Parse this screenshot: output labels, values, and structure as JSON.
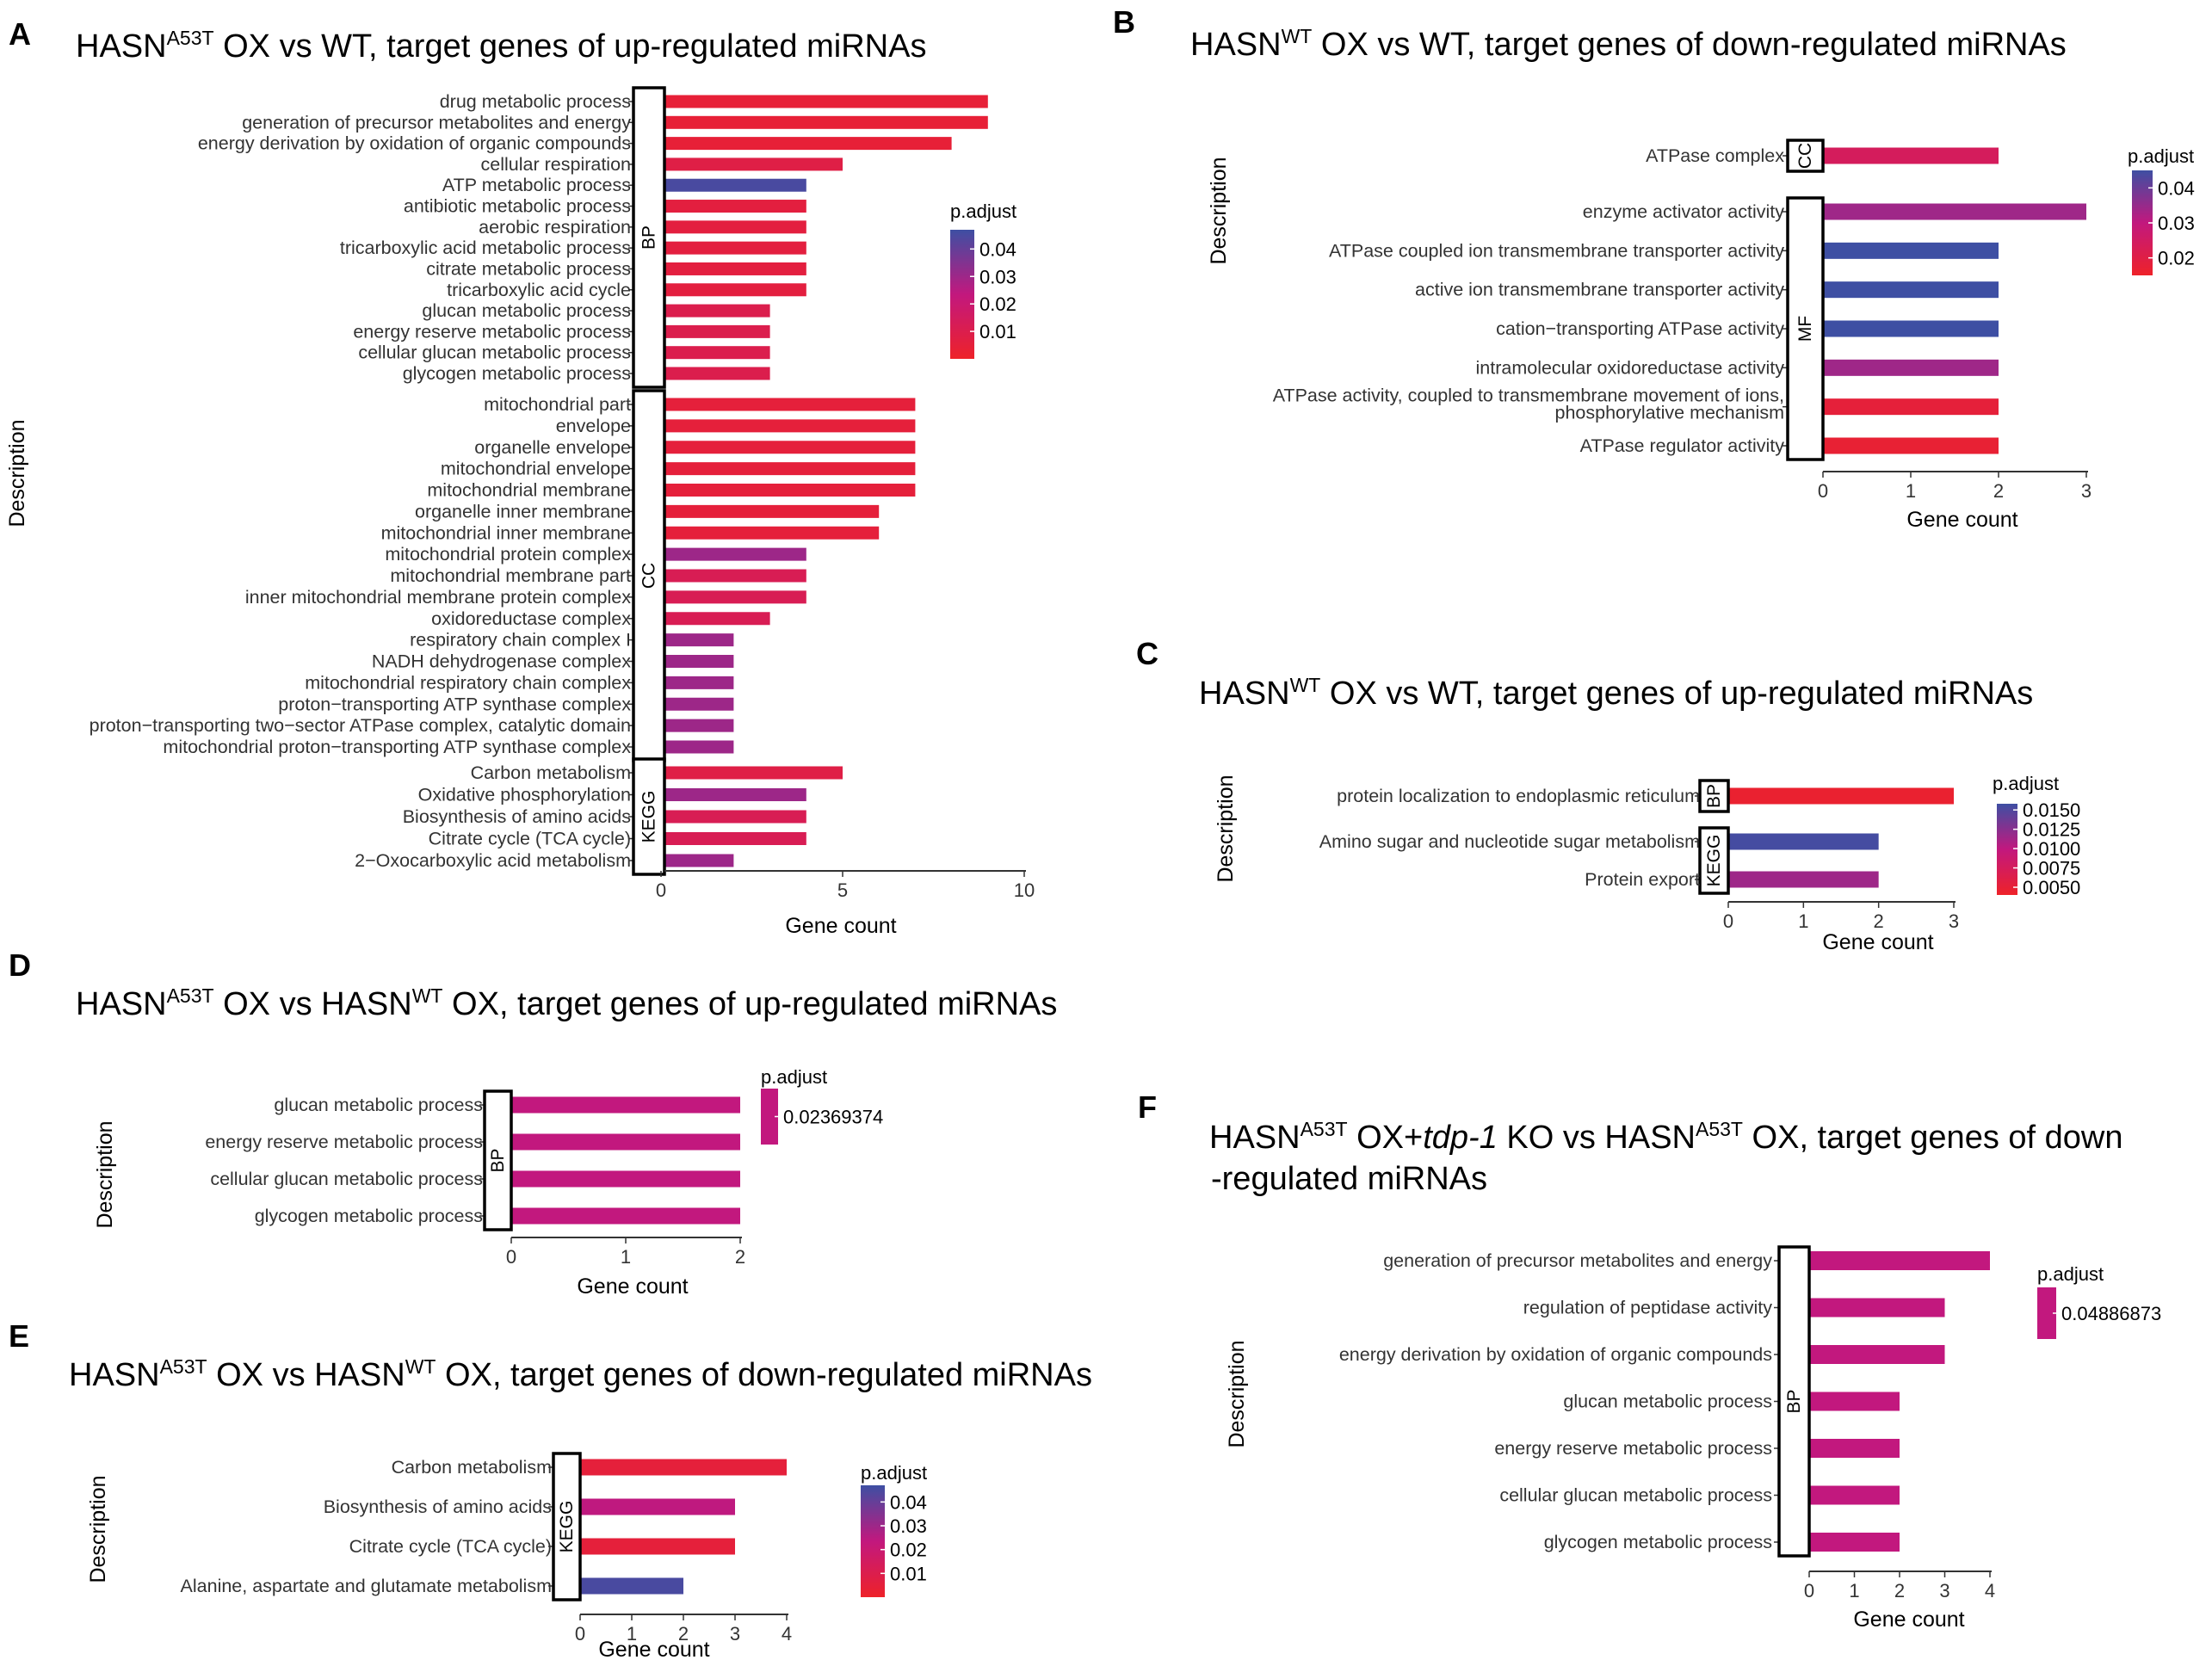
{
  "legend_title": "p.adjust",
  "x_axis_label": "Gene count",
  "y_axis_label": "Description",
  "colors": {
    "low": "#ee2229",
    "mid": "#c2187e",
    "high": "#3e4fa3"
  },
  "chart_data": [
    {
      "id": "A",
      "type": "bar",
      "orientation": "horizontal",
      "title_parts": [
        [
          "HASN",
          ""
        ],
        [
          "A53T",
          "sup"
        ],
        [
          " OX vs WT, target genes of up-regulated miRNAs",
          ""
        ]
      ],
      "xlim": [
        0,
        10
      ],
      "xticks": [
        0,
        5,
        10
      ],
      "padj_range": [
        0.0,
        0.047
      ],
      "legend_ticks": [
        "0.04",
        "0.03",
        "0.02",
        "0.01"
      ],
      "legend_values": [
        0.04,
        0.03,
        0.02,
        0.01
      ],
      "groups": [
        {
          "name": "BP",
          "items": [
            {
              "label": "drug metabolic process",
              "value": 9,
              "padj": 0.004
            },
            {
              "label": "generation of precursor metabolites and energy",
              "value": 9,
              "padj": 0.004
            },
            {
              "label": "energy derivation by oxidation of organic compounds",
              "value": 8,
              "padj": 0.004
            },
            {
              "label": "cellular respiration",
              "value": 5,
              "padj": 0.008
            },
            {
              "label": "ATP metabolic process",
              "value": 4,
              "padj": 0.045
            },
            {
              "label": "antibiotic metabolic process",
              "value": 4,
              "padj": 0.006
            },
            {
              "label": "aerobic respiration",
              "value": 4,
              "padj": 0.006
            },
            {
              "label": "tricarboxylic acid metabolic process",
              "value": 4,
              "padj": 0.006
            },
            {
              "label": "citrate metabolic process",
              "value": 4,
              "padj": 0.006
            },
            {
              "label": "tricarboxylic acid cycle",
              "value": 4,
              "padj": 0.006
            },
            {
              "label": "glucan metabolic process",
              "value": 3,
              "padj": 0.01
            },
            {
              "label": "energy reserve metabolic process",
              "value": 3,
              "padj": 0.01
            },
            {
              "label": "cellular glucan metabolic process",
              "value": 3,
              "padj": 0.01
            },
            {
              "label": "glycogen metabolic process",
              "value": 3,
              "padj": 0.01
            }
          ]
        },
        {
          "name": "CC",
          "items": [
            {
              "label": "mitochondrial part",
              "value": 7,
              "padj": 0.005
            },
            {
              "label": "envelope",
              "value": 7,
              "padj": 0.005
            },
            {
              "label": "organelle envelope",
              "value": 7,
              "padj": 0.005
            },
            {
              "label": "mitochondrial envelope",
              "value": 7,
              "padj": 0.005
            },
            {
              "label": "mitochondrial membrane",
              "value": 7,
              "padj": 0.005
            },
            {
              "label": "organelle inner membrane",
              "value": 6,
              "padj": 0.005
            },
            {
              "label": "mitochondrial inner membrane",
              "value": 6,
              "padj": 0.005
            },
            {
              "label": "mitochondrial protein complex",
              "value": 4,
              "padj": 0.03
            },
            {
              "label": "mitochondrial membrane part",
              "value": 4,
              "padj": 0.012
            },
            {
              "label": "inner mitochondrial membrane protein complex",
              "value": 4,
              "padj": 0.012
            },
            {
              "label": "oxidoreductase complex",
              "value": 3,
              "padj": 0.012
            },
            {
              "label": "respiratory chain complex I",
              "value": 2,
              "padj": 0.03
            },
            {
              "label": "NADH dehydrogenase complex",
              "value": 2,
              "padj": 0.03
            },
            {
              "label": "mitochondrial respiratory chain complex",
              "value": 2,
              "padj": 0.03
            },
            {
              "label": "proton−transporting ATP synthase complex",
              "value": 2,
              "padj": 0.03
            },
            {
              "label": "proton−transporting two−sector ATPase complex, catalytic domain",
              "value": 2,
              "padj": 0.03
            },
            {
              "label": "mitochondrial proton−transporting ATP synthase complex",
              "value": 2,
              "padj": 0.03
            }
          ]
        },
        {
          "name": "KEGG",
          "items": [
            {
              "label": "Carbon metabolism",
              "value": 5,
              "padj": 0.008
            },
            {
              "label": "Oxidative phosphorylation",
              "value": 4,
              "padj": 0.03
            },
            {
              "label": "Biosynthesis of amino acids",
              "value": 4,
              "padj": 0.012
            },
            {
              "label": "Citrate cycle (TCA cycle)",
              "value": 4,
              "padj": 0.012
            },
            {
              "label": "2−Oxocarboxylic acid metabolism",
              "value": 2,
              "padj": 0.03
            }
          ]
        }
      ]
    },
    {
      "id": "B",
      "type": "bar",
      "orientation": "horizontal",
      "title_parts": [
        [
          "HASN",
          ""
        ],
        [
          "WT",
          "sup"
        ],
        [
          " OX vs WT, target genes of down-regulated miRNAs",
          ""
        ]
      ],
      "xlim": [
        0,
        3
      ],
      "xticks": [
        0,
        1,
        2,
        3
      ],
      "padj_range": [
        0.015,
        0.045
      ],
      "legend_ticks": [
        "0.04",
        "0.03",
        "0.02"
      ],
      "legend_values": [
        0.04,
        0.03,
        0.02
      ],
      "groups": [
        {
          "name": "CC",
          "items": [
            {
              "label": "ATPase complex",
              "value": 2,
              "padj": 0.024
            }
          ]
        },
        {
          "name": "MF",
          "items": [
            {
              "label": "enzyme activator activity",
              "value": 3,
              "padj": 0.034
            },
            {
              "label": "ATPase coupled ion transmembrane transporter activity",
              "value": 2,
              "padj": 0.045
            },
            {
              "label": "active ion transmembrane transporter activity",
              "value": 2,
              "padj": 0.045
            },
            {
              "label": "cation−transporting ATPase activity",
              "value": 2,
              "padj": 0.045
            },
            {
              "label": "intramolecular oxidoreductase activity",
              "value": 2,
              "padj": 0.034
            },
            {
              "label": "ATPase activity, coupled to transmembrane movement of ions,\nphosphorylative mechanism",
              "value": 2,
              "padj": 0.018
            },
            {
              "label": "ATPase regulator activity",
              "value": 2,
              "padj": 0.017
            }
          ]
        }
      ]
    },
    {
      "id": "C",
      "type": "bar",
      "orientation": "horizontal",
      "title_parts": [
        [
          "HASN",
          ""
        ],
        [
          "WT",
          "sup"
        ],
        [
          " OX vs WT, target genes of up-regulated miRNAs",
          ""
        ]
      ],
      "xlim": [
        0,
        3
      ],
      "xticks": [
        0,
        1,
        2,
        3
      ],
      "padj_range": [
        0.004,
        0.0158
      ],
      "legend_ticks": [
        "0.0150",
        "0.0125",
        "0.0100",
        "0.0075",
        "0.0050"
      ],
      "legend_values": [
        0.015,
        0.0125,
        0.01,
        0.0075,
        0.005
      ],
      "groups": [
        {
          "name": "BP",
          "items": [
            {
              "label": "protein localization to endoplasmic reticulum",
              "value": 3,
              "padj": 0.0045
            }
          ]
        },
        {
          "name": "KEGG",
          "items": [
            {
              "label": "Amino sugar and nucleotide sugar metabolism",
              "value": 2,
              "padj": 0.0155
            },
            {
              "label": "Protein export",
              "value": 2,
              "padj": 0.0115
            }
          ]
        }
      ]
    },
    {
      "id": "D",
      "type": "bar",
      "orientation": "horizontal",
      "title_parts": [
        [
          "HASN",
          ""
        ],
        [
          "A53T",
          "sup"
        ],
        [
          " OX vs HASN",
          ""
        ],
        [
          "WT",
          "sup"
        ],
        [
          " OX, target genes of up-regulated miRNAs",
          ""
        ]
      ],
      "xlim": [
        0,
        2
      ],
      "xticks": [
        0,
        1,
        2
      ],
      "single_value": true,
      "legend_ticks": [
        "0.02369374"
      ],
      "groups": [
        {
          "name": "BP",
          "items": [
            {
              "label": "glucan metabolic process",
              "value": 2,
              "padj": 0.02369374
            },
            {
              "label": "energy reserve metabolic process",
              "value": 2,
              "padj": 0.02369374
            },
            {
              "label": "cellular glucan metabolic process",
              "value": 2,
              "padj": 0.02369374
            },
            {
              "label": "glycogen metabolic process",
              "value": 2,
              "padj": 0.02369374
            }
          ]
        }
      ]
    },
    {
      "id": "E",
      "type": "bar",
      "orientation": "horizontal",
      "title_parts": [
        [
          "HASN",
          ""
        ],
        [
          "A53T",
          "sup"
        ],
        [
          " OX vs HASN",
          ""
        ],
        [
          "WT",
          "sup"
        ],
        [
          " OX, target genes of down-regulated miRNAs",
          ""
        ]
      ],
      "xlim": [
        0,
        4
      ],
      "xticks": [
        0,
        1,
        2,
        3,
        4
      ],
      "padj_range": [
        0.0,
        0.047
      ],
      "legend_ticks": [
        "0.04",
        "0.03",
        "0.02",
        "0.01"
      ],
      "legend_values": [
        0.04,
        0.03,
        0.02,
        0.01
      ],
      "groups": [
        {
          "name": "KEGG",
          "items": [
            {
              "label": "Carbon metabolism",
              "value": 4,
              "padj": 0.005
            },
            {
              "label": "Biosynthesis of amino acids",
              "value": 3,
              "padj": 0.024
            },
            {
              "label": "Citrate cycle (TCA cycle)",
              "value": 3,
              "padj": 0.005
            },
            {
              "label": "Alanine, aspartate and glutamate metabolism",
              "value": 2,
              "padj": 0.045
            }
          ]
        }
      ]
    },
    {
      "id": "F",
      "type": "bar",
      "orientation": "horizontal",
      "title_parts": [
        [
          "HASN",
          ""
        ],
        [
          "A53T",
          "sup"
        ],
        [
          " OX+",
          ""
        ],
        [
          "tdp-1",
          "it"
        ],
        [
          " KO vs HASN",
          ""
        ],
        [
          "A53T",
          "sup"
        ],
        [
          " OX, target genes of down",
          ""
        ]
      ],
      "title_line2": "-regulated miRNAs",
      "xlim": [
        0,
        4
      ],
      "xticks": [
        0,
        1,
        2,
        3,
        4
      ],
      "single_value": true,
      "legend_ticks": [
        "0.04886873"
      ],
      "groups": [
        {
          "name": "BP",
          "items": [
            {
              "label": "generation of precursor metabolites and energy",
              "value": 4,
              "padj": 0.04886873
            },
            {
              "label": "regulation of peptidase activity",
              "value": 3,
              "padj": 0.04886873
            },
            {
              "label": "energy derivation by oxidation of organic compounds",
              "value": 3,
              "padj": 0.04886873
            },
            {
              "label": "glucan metabolic process",
              "value": 2,
              "padj": 0.04886873
            },
            {
              "label": "energy reserve metabolic process",
              "value": 2,
              "padj": 0.04886873
            },
            {
              "label": "cellular glucan metabolic process",
              "value": 2,
              "padj": 0.04886873
            },
            {
              "label": "glycogen metabolic process",
              "value": 2,
              "padj": 0.04886873
            }
          ]
        }
      ]
    }
  ]
}
